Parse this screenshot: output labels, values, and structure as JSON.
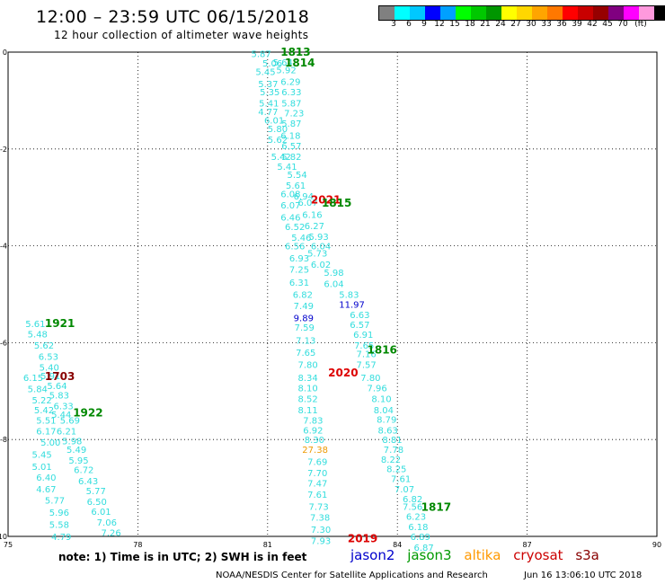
{
  "title": "12:00 – 23:59 UTC 06/15/2018",
  "subtitle": "12 hour collection of altimeter wave heights",
  "colorbar": {
    "unit": "(ft)",
    "colors": [
      "#808080",
      "#00ffff",
      "#00c8ff",
      "#0000ff",
      "#00a0ff",
      "#00ff00",
      "#00c800",
      "#009600",
      "#ffff00",
      "#ffd700",
      "#ffa500",
      "#ff7800",
      "#ff0000",
      "#c80000",
      "#960000",
      "#800080",
      "#ff00ff",
      "#ff99dd",
      "#000000"
    ],
    "labels": [
      "3",
      "6",
      "9",
      "12",
      "15",
      "18",
      "21",
      "24",
      "27",
      "30",
      "33",
      "36",
      "39",
      "42",
      "45",
      "70"
    ]
  },
  "axes": {
    "x_ticks": [
      "75",
      "78",
      "81",
      "84",
      "87",
      "90"
    ],
    "y_ticks": [
      "0",
      "-2",
      "-4",
      "-6",
      "-8",
      "-10"
    ]
  },
  "chart_data": {
    "type": "scatter",
    "xlim": [
      75,
      90
    ],
    "ylim": [
      -10,
      0
    ],
    "x_ticks": [
      75,
      78,
      81,
      84,
      87,
      90
    ],
    "y_ticks": [
      0,
      -2,
      -4,
      -6,
      -8,
      -10
    ],
    "grid": true,
    "points": [
      {
        "lon": 80.62,
        "lat": -0.03,
        "v": "5.87",
        "c": "#33dddd"
      },
      {
        "lon": 80.88,
        "lat": -0.22,
        "v": "5.06",
        "c": "#33dddd"
      },
      {
        "lon": 81.12,
        "lat": -0.2,
        "v": "5.64",
        "c": "#33dddd"
      },
      {
        "lon": 80.72,
        "lat": -0.4,
        "v": "5.45",
        "c": "#33dddd"
      },
      {
        "lon": 81.2,
        "lat": -0.36,
        "v": "5.92",
        "c": "#33dddd"
      },
      {
        "lon": 80.78,
        "lat": -0.65,
        "v": "5.37",
        "c": "#33dddd"
      },
      {
        "lon": 81.3,
        "lat": -0.6,
        "v": "6.29",
        "c": "#33dddd"
      },
      {
        "lon": 80.82,
        "lat": -0.82,
        "v": "5.35",
        "c": "#33dddd"
      },
      {
        "lon": 81.32,
        "lat": -0.82,
        "v": "6.33",
        "c": "#33dddd"
      },
      {
        "lon": 80.8,
        "lat": -1.05,
        "v": "5.41",
        "c": "#33dddd"
      },
      {
        "lon": 81.32,
        "lat": -1.05,
        "v": "5.87",
        "c": "#33dddd"
      },
      {
        "lon": 80.78,
        "lat": -1.22,
        "v": "4.77",
        "c": "#33dddd"
      },
      {
        "lon": 81.38,
        "lat": -1.25,
        "v": "7.23",
        "c": "#33dddd"
      },
      {
        "lon": 80.92,
        "lat": -1.4,
        "v": "6.01",
        "c": "#33dddd"
      },
      {
        "lon": 81.32,
        "lat": -1.47,
        "v": "5.87",
        "c": "#33dddd"
      },
      {
        "lon": 81.0,
        "lat": -1.58,
        "v": "5.80",
        "c": "#33dddd"
      },
      {
        "lon": 81.3,
        "lat": -1.72,
        "v": "6.18",
        "c": "#33dddd"
      },
      {
        "lon": 81.0,
        "lat": -1.8,
        "v": "5.62",
        "c": "#33dddd"
      },
      {
        "lon": 81.32,
        "lat": -1.93,
        "v": "6.57",
        "c": "#33dddd"
      },
      {
        "lon": 81.08,
        "lat": -2.15,
        "v": "5.42",
        "c": "#33dddd"
      },
      {
        "lon": 81.32,
        "lat": -2.15,
        "v": "5.82",
        "c": "#33dddd"
      },
      {
        "lon": 81.22,
        "lat": -2.36,
        "v": "5.41",
        "c": "#33dddd"
      },
      {
        "lon": 81.45,
        "lat": -2.52,
        "v": "5.54",
        "c": "#33dddd"
      },
      {
        "lon": 81.42,
        "lat": -2.75,
        "v": "5.61",
        "c": "#33dddd"
      },
      {
        "lon": 81.3,
        "lat": -2.92,
        "v": "6.08",
        "c": "#33dddd"
      },
      {
        "lon": 81.6,
        "lat": -2.97,
        "v": "6.94",
        "c": "#33dddd"
      },
      {
        "lon": 81.3,
        "lat": -3.15,
        "v": "6.07",
        "c": "#33dddd"
      },
      {
        "lon": 81.7,
        "lat": -3.1,
        "v": "6.07",
        "c": "#33dddd"
      },
      {
        "lon": 81.3,
        "lat": -3.4,
        "v": "6.46",
        "c": "#33dddd"
      },
      {
        "lon": 81.8,
        "lat": -3.35,
        "v": "6.16",
        "c": "#33dddd"
      },
      {
        "lon": 81.4,
        "lat": -3.6,
        "v": "6.52",
        "c": "#33dddd"
      },
      {
        "lon": 81.85,
        "lat": -3.58,
        "v": "6.27",
        "c": "#33dddd"
      },
      {
        "lon": 81.55,
        "lat": -3.82,
        "v": "5.46",
        "c": "#33dddd"
      },
      {
        "lon": 81.95,
        "lat": -3.8,
        "v": "5.93",
        "c": "#33dddd"
      },
      {
        "lon": 81.4,
        "lat": -4.0,
        "v": "6.56",
        "c": "#33dddd"
      },
      {
        "lon": 82.0,
        "lat": -4.0,
        "v": "6.04",
        "c": "#33dddd"
      },
      {
        "lon": 81.92,
        "lat": -4.15,
        "v": "5.73",
        "c": "#33dddd"
      },
      {
        "lon": 81.5,
        "lat": -4.25,
        "v": "6.93",
        "c": "#33dddd"
      },
      {
        "lon": 82.0,
        "lat": -4.38,
        "v": "6.02",
        "c": "#33dddd"
      },
      {
        "lon": 81.5,
        "lat": -4.48,
        "v": "7.25",
        "c": "#33dddd"
      },
      {
        "lon": 82.3,
        "lat": -4.55,
        "v": "5.98",
        "c": "#33dddd"
      },
      {
        "lon": 81.5,
        "lat": -4.75,
        "v": "6.31",
        "c": "#33dddd"
      },
      {
        "lon": 82.3,
        "lat": -4.78,
        "v": "6.04",
        "c": "#33dddd"
      },
      {
        "lon": 81.58,
        "lat": -5.0,
        "v": "6.82",
        "c": "#33dddd"
      },
      {
        "lon": 82.65,
        "lat": -5.0,
        "v": "5.83",
        "c": "#33dddd"
      },
      {
        "lon": 81.6,
        "lat": -5.23,
        "v": "7.49",
        "c": "#33dddd"
      },
      {
        "lon": 82.65,
        "lat": -5.2,
        "v": "11.97",
        "c": "#0000cc"
      },
      {
        "lon": 81.6,
        "lat": -5.48,
        "v": "9.89",
        "c": "#0000cc"
      },
      {
        "lon": 82.9,
        "lat": -5.42,
        "v": "6.63",
        "c": "#33dddd"
      },
      {
        "lon": 81.62,
        "lat": -5.68,
        "v": "7.59",
        "c": "#33dddd"
      },
      {
        "lon": 82.9,
        "lat": -5.62,
        "v": "6.57",
        "c": "#33dddd"
      },
      {
        "lon": 82.98,
        "lat": -5.83,
        "v": "6.91",
        "c": "#33dddd"
      },
      {
        "lon": 81.65,
        "lat": -5.95,
        "v": "7.13",
        "c": "#33dddd"
      },
      {
        "lon": 83.0,
        "lat": -6.05,
        "v": "7.65",
        "c": "#33dddd"
      },
      {
        "lon": 81.65,
        "lat": -6.2,
        "v": "7.65",
        "c": "#33dddd"
      },
      {
        "lon": 83.05,
        "lat": -6.22,
        "v": "7.16",
        "c": "#33dddd"
      },
      {
        "lon": 81.7,
        "lat": -6.45,
        "v": "7.80",
        "c": "#33dddd"
      },
      {
        "lon": 83.05,
        "lat": -6.45,
        "v": "7.57",
        "c": "#33dddd"
      },
      {
        "lon": 81.7,
        "lat": -6.72,
        "v": "8.34",
        "c": "#33dddd"
      },
      {
        "lon": 83.15,
        "lat": -6.72,
        "v": "7.80",
        "c": "#33dddd"
      },
      {
        "lon": 81.7,
        "lat": -6.93,
        "v": "8.10",
        "c": "#33dddd"
      },
      {
        "lon": 83.3,
        "lat": -6.93,
        "v": "7.96",
        "c": "#33dddd"
      },
      {
        "lon": 81.7,
        "lat": -7.15,
        "v": "8.52",
        "c": "#33dddd"
      },
      {
        "lon": 83.4,
        "lat": -7.15,
        "v": "8.10",
        "c": "#33dddd"
      },
      {
        "lon": 81.7,
        "lat": -7.38,
        "v": "8.11",
        "c": "#33dddd"
      },
      {
        "lon": 83.45,
        "lat": -7.38,
        "v": "8.04",
        "c": "#33dddd"
      },
      {
        "lon": 81.82,
        "lat": -7.6,
        "v": "7.83",
        "c": "#33dddd"
      },
      {
        "lon": 83.52,
        "lat": -7.58,
        "v": "8.79",
        "c": "#33dddd"
      },
      {
        "lon": 81.82,
        "lat": -7.8,
        "v": "6.92",
        "c": "#33dddd"
      },
      {
        "lon": 83.55,
        "lat": -7.8,
        "v": "8.63",
        "c": "#33dddd"
      },
      {
        "lon": 81.85,
        "lat": -8.0,
        "v": "8.30",
        "c": "#33dddd"
      },
      {
        "lon": 83.65,
        "lat": -8.0,
        "v": "8.81",
        "c": "#33dddd"
      },
      {
        "lon": 81.8,
        "lat": -8.2,
        "v": "27.38",
        "c": "#ee9900"
      },
      {
        "lon": 83.68,
        "lat": -8.2,
        "v": "7.78",
        "c": "#33dddd"
      },
      {
        "lon": 83.62,
        "lat": -8.4,
        "v": "8.22",
        "c": "#33dddd"
      },
      {
        "lon": 81.92,
        "lat": -8.45,
        "v": "7.69",
        "c": "#33dddd"
      },
      {
        "lon": 83.75,
        "lat": -8.6,
        "v": "8.25",
        "c": "#33dddd"
      },
      {
        "lon": 81.92,
        "lat": -8.68,
        "v": "7.70",
        "c": "#33dddd"
      },
      {
        "lon": 83.85,
        "lat": -8.8,
        "v": "7.61",
        "c": "#33dddd"
      },
      {
        "lon": 81.92,
        "lat": -8.9,
        "v": "7.47",
        "c": "#33dddd"
      },
      {
        "lon": 83.93,
        "lat": -9.02,
        "v": "7.07",
        "c": "#33dddd"
      },
      {
        "lon": 81.92,
        "lat": -9.13,
        "v": "7.61",
        "c": "#33dddd"
      },
      {
        "lon": 84.12,
        "lat": -9.22,
        "v": "6.82",
        "c": "#33dddd"
      },
      {
        "lon": 84.12,
        "lat": -9.38,
        "v": "7.56",
        "c": "#33dddd"
      },
      {
        "lon": 81.95,
        "lat": -9.38,
        "v": "7.73",
        "c": "#33dddd"
      },
      {
        "lon": 84.2,
        "lat": -9.58,
        "v": "6.23",
        "c": "#33dddd"
      },
      {
        "lon": 81.98,
        "lat": -9.6,
        "v": "7.38",
        "c": "#33dddd"
      },
      {
        "lon": 84.25,
        "lat": -9.8,
        "v": "6.18",
        "c": "#33dddd"
      },
      {
        "lon": 82.0,
        "lat": -9.85,
        "v": "7.30",
        "c": "#33dddd"
      },
      {
        "lon": 84.3,
        "lat": -10.0,
        "v": "6.89",
        "c": "#33dddd"
      },
      {
        "lon": 82.0,
        "lat": -10.08,
        "v": "7.93",
        "c": "#33dddd"
      },
      {
        "lon": 84.38,
        "lat": -10.22,
        "v": "6.87",
        "c": "#33dddd"
      },
      {
        "lon": 75.4,
        "lat": -5.6,
        "v": "5.61",
        "c": "#33dddd"
      },
      {
        "lon": 75.45,
        "lat": -5.82,
        "v": "5.48",
        "c": "#33dddd"
      },
      {
        "lon": 75.6,
        "lat": -6.05,
        "v": "5.62",
        "c": "#33dddd"
      },
      {
        "lon": 75.7,
        "lat": -6.28,
        "v": "6.53",
        "c": "#33dddd"
      },
      {
        "lon": 75.72,
        "lat": -6.5,
        "v": "5.40",
        "c": "#33dddd"
      },
      {
        "lon": 75.35,
        "lat": -6.72,
        "v": "6.15",
        "c": "#33dddd"
      },
      {
        "lon": 75.75,
        "lat": -6.68,
        "v": "5.91",
        "c": "#33dddd"
      },
      {
        "lon": 75.45,
        "lat": -6.95,
        "v": "5.84",
        "c": "#33dddd"
      },
      {
        "lon": 75.9,
        "lat": -6.88,
        "v": "5.64",
        "c": "#33dddd"
      },
      {
        "lon": 75.55,
        "lat": -7.18,
        "v": "5.22",
        "c": "#33dddd"
      },
      {
        "lon": 75.95,
        "lat": -7.08,
        "v": "5.83",
        "c": "#33dddd"
      },
      {
        "lon": 75.6,
        "lat": -7.38,
        "v": "5.42",
        "c": "#33dddd"
      },
      {
        "lon": 76.05,
        "lat": -7.3,
        "v": "6.33",
        "c": "#33dddd"
      },
      {
        "lon": 76.0,
        "lat": -7.48,
        "v": "5.44",
        "c": "#33dddd"
      },
      {
        "lon": 75.65,
        "lat": -7.6,
        "v": "5.51",
        "c": "#33dddd"
      },
      {
        "lon": 76.2,
        "lat": -7.6,
        "v": "5.69",
        "c": "#33dddd"
      },
      {
        "lon": 75.65,
        "lat": -7.82,
        "v": "6.17",
        "c": "#33dddd"
      },
      {
        "lon": 76.12,
        "lat": -7.82,
        "v": "6.21",
        "c": "#33dddd"
      },
      {
        "lon": 75.75,
        "lat": -8.05,
        "v": "5.00",
        "c": "#33dddd"
      },
      {
        "lon": 76.25,
        "lat": -8.02,
        "v": "5.98",
        "c": "#33dddd"
      },
      {
        "lon": 75.55,
        "lat": -8.3,
        "v": "5.45",
        "c": "#33dddd"
      },
      {
        "lon": 76.35,
        "lat": -8.2,
        "v": "5.49",
        "c": "#33dddd"
      },
      {
        "lon": 76.4,
        "lat": -8.42,
        "v": "5.95",
        "c": "#33dddd"
      },
      {
        "lon": 75.55,
        "lat": -8.55,
        "v": "5.01",
        "c": "#33dddd"
      },
      {
        "lon": 76.52,
        "lat": -8.62,
        "v": "6.72",
        "c": "#33dddd"
      },
      {
        "lon": 75.65,
        "lat": -8.78,
        "v": "6.40",
        "c": "#33dddd"
      },
      {
        "lon": 76.62,
        "lat": -8.85,
        "v": "6.43",
        "c": "#33dddd"
      },
      {
        "lon": 75.65,
        "lat": -9.02,
        "v": "4.67",
        "c": "#33dddd"
      },
      {
        "lon": 76.8,
        "lat": -9.05,
        "v": "5.77",
        "c": "#33dddd"
      },
      {
        "lon": 75.85,
        "lat": -9.25,
        "v": "5.77",
        "c": "#33dddd"
      },
      {
        "lon": 76.82,
        "lat": -9.28,
        "v": "6.50",
        "c": "#33dddd"
      },
      {
        "lon": 75.95,
        "lat": -9.5,
        "v": "5.96",
        "c": "#33dddd"
      },
      {
        "lon": 76.92,
        "lat": -9.48,
        "v": "6.01",
        "c": "#33dddd"
      },
      {
        "lon": 77.05,
        "lat": -9.7,
        "v": "7.06",
        "c": "#33dddd"
      },
      {
        "lon": 75.95,
        "lat": -9.75,
        "v": "5.58",
        "c": "#33dddd"
      },
      {
        "lon": 77.15,
        "lat": -9.92,
        "v": "7.26",
        "c": "#33dddd"
      },
      {
        "lon": 76.0,
        "lat": -10.0,
        "v": "4.79",
        "c": "#33dddd"
      }
    ],
    "pass_labels": [
      {
        "lon": 81.3,
        "lat": 0.0,
        "text": "1813",
        "c": "#008800"
      },
      {
        "lon": 81.4,
        "lat": -0.22,
        "text": "1814",
        "c": "#008800"
      },
      {
        "lon": 82.0,
        "lat": -3.05,
        "text": "2021",
        "c": "#dd0000"
      },
      {
        "lon": 82.25,
        "lat": -3.12,
        "text": "1815",
        "c": "#008800"
      },
      {
        "lon": 75.85,
        "lat": -5.6,
        "text": "1921",
        "c": "#008800"
      },
      {
        "lon": 83.3,
        "lat": -6.15,
        "text": "1816",
        "c": "#008800"
      },
      {
        "lon": 75.85,
        "lat": -6.7,
        "text": "1703",
        "c": "#880000"
      },
      {
        "lon": 82.4,
        "lat": -6.62,
        "text": "2020",
        "c": "#dd0000"
      },
      {
        "lon": 76.5,
        "lat": -7.45,
        "text": "1922",
        "c": "#008800"
      },
      {
        "lon": 84.55,
        "lat": -9.4,
        "text": "1817",
        "c": "#008800"
      },
      {
        "lon": 82.85,
        "lat": -10.05,
        "text": "2019",
        "c": "#dd0000"
      }
    ]
  },
  "note": "note: 1) Time is in UTC; 2) SWH is in feet",
  "legend": [
    {
      "label": "jason2",
      "color": "#0000cc"
    },
    {
      "label": "jason3",
      "color": "#009900"
    },
    {
      "label": "altika",
      "color": "#ff9900"
    },
    {
      "label": "cryosat",
      "color": "#cc0000"
    },
    {
      "label": "s3a",
      "color": "#880000"
    }
  ],
  "credit": "NOAA/NESDIS Center for Satellite Applications and Research",
  "timestamp": "Jun 16 13:06:10 UTC 2018"
}
